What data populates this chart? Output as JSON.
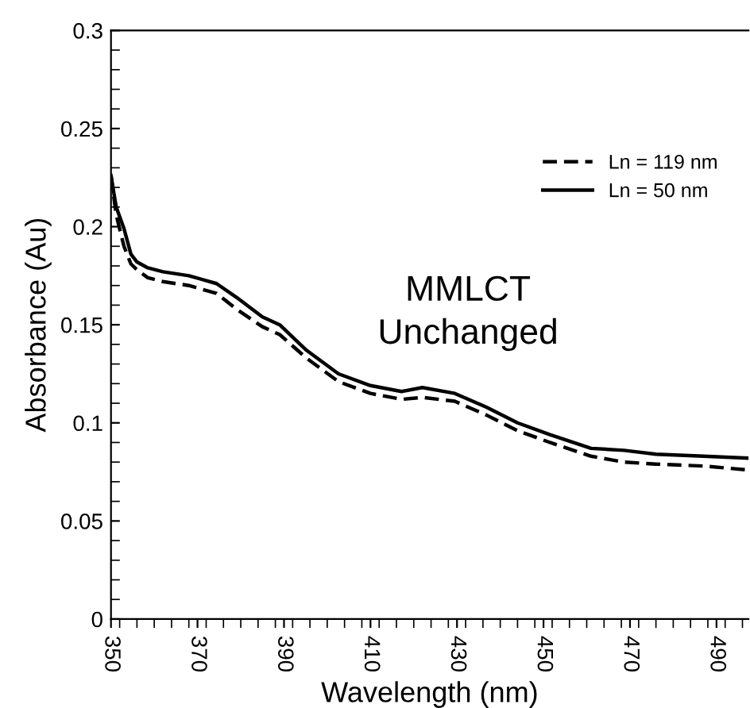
{
  "chart_data": {
    "type": "line",
    "xlabel": "Wavelength (nm)",
    "ylabel": "Absorbance (Au)",
    "annotations": [
      "MMLCT\nUnchanged"
    ],
    "xlim": [
      350,
      497.4
    ],
    "xticks": [
      350,
      370,
      390,
      410,
      430,
      450,
      470,
      490
    ],
    "ylim": [
      0,
      0.3
    ],
    "yticks": [
      0,
      0.05,
      0.1,
      0.15,
      0.2,
      0.25,
      0.3
    ],
    "grid": false,
    "legend": "top right",
    "marker": "none",
    "x": [
      350,
      351.2,
      353,
      354.6,
      356,
      358.5,
      362,
      368,
      374.4,
      379,
      385,
      389,
      395.2,
      402.6,
      410,
      417.2,
      422,
      429.5,
      436.8,
      444,
      451.5,
      461,
      468.6,
      476,
      487,
      497.4
    ],
    "series": [
      {
        "name": "Ln = 119 nm",
        "color": "#000000",
        "line_style": "dashed",
        "values": [
          0.226,
          0.206,
          0.19,
          0.181,
          0.178,
          0.174,
          0.172,
          0.17,
          0.166,
          0.158,
          0.149,
          0.145,
          0.133,
          0.121,
          0.115,
          0.112,
          0.113,
          0.111,
          0.104,
          0.096,
          0.09,
          0.083,
          0.08,
          0.079,
          0.078,
          0.076
        ]
      },
      {
        "name": "Ln = 50 nm",
        "color": "#000000",
        "line_style": "solid",
        "values": [
          0.226,
          0.21,
          0.199,
          0.186,
          0.182,
          0.179,
          0.177,
          0.175,
          0.171,
          0.164,
          0.154,
          0.15,
          0.137,
          0.125,
          0.119,
          0.116,
          0.118,
          0.115,
          0.108,
          0.1,
          0.094,
          0.087,
          0.086,
          0.084,
          0.083,
          0.082
        ]
      }
    ]
  }
}
